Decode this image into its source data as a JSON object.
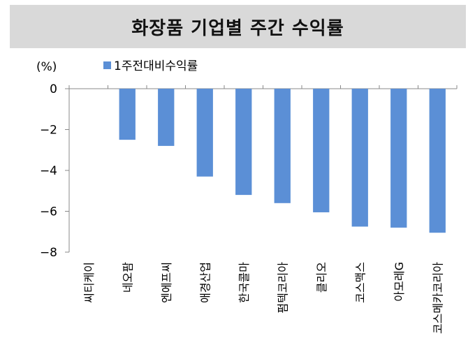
{
  "chart_data": {
    "type": "bar",
    "title": "화장품 기업별 주간 수익률",
    "unit_label": "(%)",
    "legend": "1주전대비수익률",
    "legend_placement": "top-left",
    "categories": [
      "씨티케이",
      "네오팜",
      "엔에프씨",
      "애경산업",
      "한국콜마",
      "펌텍코리아",
      "클리오",
      "코스맥스",
      "아모레G",
      "코스메카코리아"
    ],
    "series": [
      {
        "name": "1주전대비수익률",
        "values": [
          0,
          -2.5,
          -2.8,
          -4.3,
          -5.2,
          -5.6,
          -6.05,
          -6.75,
          -6.8,
          -7.05
        ]
      }
    ],
    "ylim": [
      -8,
      0
    ],
    "yticks": [
      0,
      -2,
      -4,
      -6,
      -8
    ],
    "ytick_labels": [
      "0",
      "−2",
      "−4",
      "−6",
      "−8"
    ],
    "grid": false,
    "bar_color": "#5b8fd6"
  }
}
